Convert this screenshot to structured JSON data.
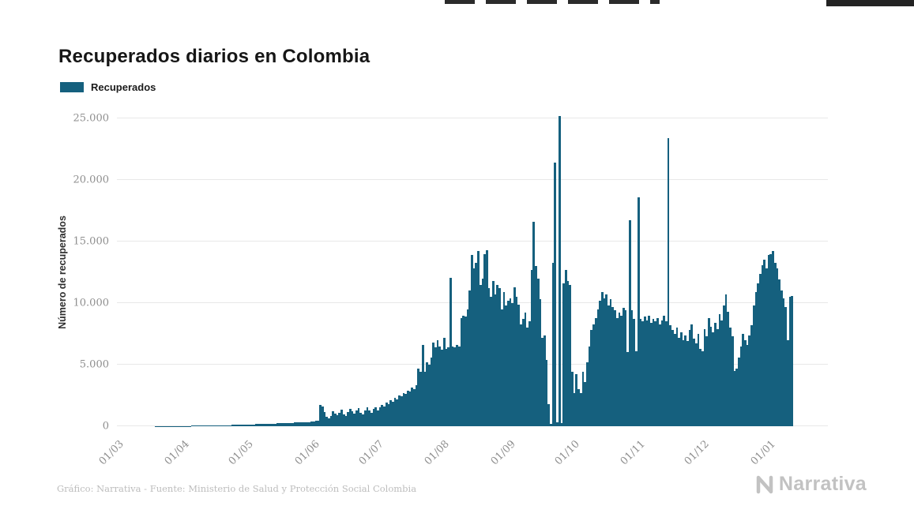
{
  "header": {
    "title": "Recuperados diarios en Colombia"
  },
  "legend": {
    "label": "Recuperados",
    "color": "#15607e"
  },
  "footer": {
    "credit": "Gráfico: Narrativa - Fuente: Ministerio de Salud y Protección Social Colombia",
    "brand": "Narrativa"
  },
  "chart_data": {
    "type": "bar",
    "title": "Recuperados diarios en Colombia",
    "xlabel": "",
    "ylabel": "Número de recuperados",
    "series_name": "Recuperados",
    "bar_color": "#15607e",
    "grid": true,
    "legend_position": "top-left",
    "ylim": [
      0,
      25000
    ],
    "y_ticks": [
      {
        "value": 0,
        "label": "0"
      },
      {
        "value": 5000,
        "label": "5.000"
      },
      {
        "value": 10000,
        "label": "10.000"
      },
      {
        "value": 15000,
        "label": "15.000"
      },
      {
        "value": 20000,
        "label": "20.000"
      },
      {
        "value": 25000,
        "label": "25.000"
      }
    ],
    "x_ticks": [
      {
        "label": "01/03",
        "index": 0
      },
      {
        "label": "01/04",
        "index": 31
      },
      {
        "label": "01/05",
        "index": 61
      },
      {
        "label": "01/06",
        "index": 92
      },
      {
        "label": "01/07",
        "index": 122
      },
      {
        "label": "01/08",
        "index": 153
      },
      {
        "label": "01/09",
        "index": 184
      },
      {
        "label": "01/10",
        "index": 214
      },
      {
        "label": "01/11",
        "index": 245
      },
      {
        "label": "01/12",
        "index": 275
      },
      {
        "label": "01/01",
        "index": 306
      }
    ],
    "values": [
      0,
      0,
      0,
      0,
      0,
      0,
      0,
      0,
      1,
      1,
      2,
      2,
      3,
      3,
      4,
      5,
      5,
      6,
      7,
      8,
      9,
      10,
      11,
      12,
      14,
      15,
      17,
      19,
      21,
      23,
      25,
      28,
      30,
      33,
      36,
      39,
      42,
      45,
      48,
      50,
      53,
      56,
      60,
      63,
      66,
      70,
      73,
      76,
      80,
      84,
      88,
      92,
      96,
      100,
      105,
      110,
      115,
      120,
      126,
      132,
      138,
      145,
      150,
      156,
      162,
      168,
      174,
      180,
      187,
      193,
      200,
      207,
      214,
      221,
      228,
      236,
      243,
      251,
      258,
      266,
      274,
      282,
      290,
      298,
      306,
      315,
      323,
      332,
      340,
      349,
      358,
      367,
      420,
      480,
      1700,
      1620,
      1150,
      760,
      640,
      830,
      1220,
      1040,
      920,
      1120,
      1320,
      960,
      860,
      1160,
      1420,
      1220,
      1010,
      1260,
      1460,
      1110,
      960,
      1310,
      1510,
      1260,
      1060,
      1410,
      1560,
      1310,
      1520,
      1710,
      1620,
      1910,
      1820,
      2110,
      2010,
      2310,
      2210,
      2510,
      2410,
      2710,
      2610,
      2910,
      2810,
      3110,
      3010,
      3310,
      4700,
      4400,
      6600,
      4400,
      5200,
      5000,
      5600,
      6800,
      6400,
      7000,
      6500,
      6200,
      7200,
      6300,
      6400,
      12050,
      6500,
      6400,
      6600,
      6500,
      8800,
      9000,
      8900,
      9500,
      11000,
      13900,
      12800,
      13300,
      14200,
      11500,
      12000,
      14000,
      14300,
      11200,
      10500,
      11800,
      10700,
      11500,
      11200,
      9500,
      10900,
      9800,
      10200,
      10400,
      10000,
      11300,
      10500,
      9900,
      8300,
      8700,
      9200,
      8000,
      8500,
      12700,
      16600,
      13000,
      12000,
      10300,
      7200,
      7400,
      5400,
      1800,
      200,
      13300,
      21400,
      300,
      25200,
      250,
      11600,
      12700,
      11800,
      11500,
      4400,
      2700,
      4200,
      3000,
      2700,
      4400,
      3600,
      5200,
      6500,
      7800,
      8300,
      8800,
      9500,
      10200,
      10900,
      10400,
      10700,
      9800,
      10300,
      9700,
      9400,
      8800,
      9200,
      9000,
      9600,
      9400,
      6000,
      16700,
      9400,
      8700,
      6100,
      18600,
      8700,
      8500,
      8900,
      8600,
      9000,
      8400,
      8700,
      8500,
      8800,
      8300,
      8600,
      9000,
      8500,
      23400,
      8200,
      7800,
      7500,
      8000,
      7200,
      7600,
      7000,
      7400,
      6900,
      7800,
      8300,
      7100,
      6700,
      7500,
      6300,
      6100,
      7900,
      7300,
      8800,
      8100,
      7600,
      8400,
      7900,
      9100,
      8600,
      9800,
      10700,
      9300,
      8000,
      7300,
      4500,
      4700,
      5600,
      6500,
      7500,
      7000,
      6600,
      7400,
      8200,
      9800,
      10900,
      11600,
      12400,
      13100,
      13500,
      12800,
      13900,
      14000,
      14200,
      13300,
      12800,
      11900,
      11000,
      10400,
      9700,
      7000,
      10500,
      10600
    ]
  }
}
